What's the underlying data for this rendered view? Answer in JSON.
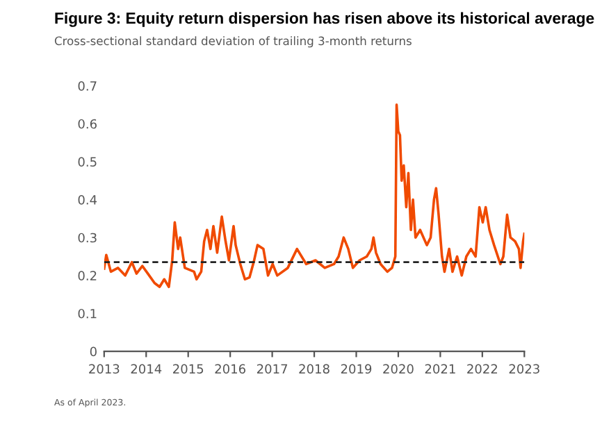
{
  "chart_data": {
    "type": "line",
    "title": "Figure 3: Equity return dispersion has risen above its historical average",
    "subtitle": "Cross-sectional standard deviation of trailing 3-month returns",
    "annotations": [
      "As of April 2023."
    ],
    "x": [
      2013.0,
      2013.05,
      2013.16,
      2013.33,
      2013.5,
      2013.66,
      2013.77,
      2013.91,
      2014.04,
      2014.2,
      2014.32,
      2014.43,
      2014.54,
      2014.62,
      2014.68,
      2014.76,
      2014.81,
      2014.92,
      2015.14,
      2015.2,
      2015.31,
      2015.38,
      2015.45,
      2015.53,
      2015.6,
      2015.69,
      2015.8,
      2015.89,
      2015.97,
      2016.08,
      2016.13,
      2016.24,
      2016.35,
      2016.46,
      2016.57,
      2016.65,
      2016.79,
      2016.9,
      2017.01,
      2017.12,
      2017.37,
      2017.59,
      2017.81,
      2018.03,
      2018.25,
      2018.47,
      2018.58,
      2018.7,
      2018.81,
      2018.92,
      2019.08,
      2019.25,
      2019.36,
      2019.41,
      2019.47,
      2019.58,
      2019.74,
      2019.85,
      2019.93,
      2019.96,
      2020.0,
      2020.04,
      2020.08,
      2020.13,
      2020.19,
      2020.24,
      2020.3,
      2020.35,
      2020.41,
      2020.52,
      2020.68,
      2020.77,
      2020.85,
      2020.9,
      2020.96,
      2021.04,
      2021.1,
      2021.21,
      2021.29,
      2021.4,
      2021.51,
      2021.62,
      2021.73,
      2021.84,
      2021.93,
      2022.01,
      2022.08,
      2022.17,
      2022.28,
      2022.43,
      2022.5,
      2022.59,
      2022.67,
      2022.78,
      2022.87,
      2022.91,
      2022.97,
      2023.0
    ],
    "series": [
      {
        "color": "#f04a00",
        "values": [
          0.218,
          0.254,
          0.21,
          0.22,
          0.2,
          0.235,
          0.205,
          0.225,
          0.205,
          0.18,
          0.17,
          0.19,
          0.17,
          0.24,
          0.34,
          0.27,
          0.3,
          0.22,
          0.21,
          0.19,
          0.21,
          0.29,
          0.32,
          0.27,
          0.33,
          0.26,
          0.355,
          0.29,
          0.24,
          0.33,
          0.28,
          0.23,
          0.19,
          0.195,
          0.24,
          0.28,
          0.27,
          0.2,
          0.23,
          0.2,
          0.22,
          0.27,
          0.23,
          0.24,
          0.22,
          0.23,
          0.25,
          0.3,
          0.27,
          0.22,
          0.24,
          0.25,
          0.27,
          0.3,
          0.26,
          0.23,
          0.21,
          0.22,
          0.25,
          0.65,
          0.58,
          0.57,
          0.45,
          0.49,
          0.38,
          0.47,
          0.32,
          0.4,
          0.3,
          0.32,
          0.28,
          0.3,
          0.4,
          0.43,
          0.36,
          0.25,
          0.21,
          0.27,
          0.21,
          0.25,
          0.2,
          0.25,
          0.27,
          0.25,
          0.38,
          0.34,
          0.38,
          0.32,
          0.28,
          0.23,
          0.25,
          0.36,
          0.3,
          0.29,
          0.27,
          0.22,
          0.29,
          0.31
        ]
      }
    ],
    "xlim": [
      2013,
      2023
    ],
    "xticks": [
      2013,
      2014,
      2015,
      2016,
      2017,
      2018,
      2019,
      2020,
      2021,
      2022,
      2023
    ],
    "ylim": [
      0,
      0.7
    ],
    "yticks": [
      0,
      0.1,
      0.2,
      0.3,
      0.4,
      0.5,
      0.6,
      0.7
    ],
    "grid": false,
    "legend": false,
    "marker": "none",
    "line_style": "solid",
    "ref_lines": [
      {
        "axis": "y",
        "value": 0.235,
        "label": null,
        "color": "#222222",
        "line_style": "dashed"
      }
    ]
  }
}
